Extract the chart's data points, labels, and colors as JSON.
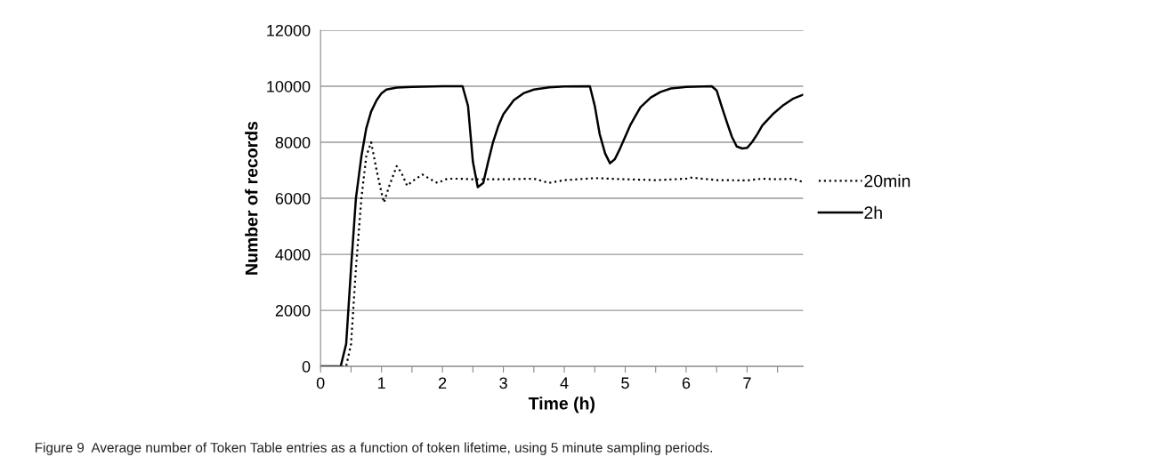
{
  "chart_data": {
    "type": "line",
    "xlabel": "Time (h)",
    "ylabel": "Number of records",
    "xlim": [
      0,
      7.92
    ],
    "ylim": [
      0,
      12000
    ],
    "xticks": [
      0,
      {
        "value": 0.5,
        "label": null
      },
      1,
      {
        "value": 1.5,
        "label": null
      },
      2,
      {
        "value": 2.5,
        "label": null
      },
      3,
      {
        "value": 3.5,
        "label": null
      },
      4,
      {
        "value": 4.5,
        "label": null
      },
      5,
      {
        "value": 5.5,
        "label": null
      },
      6,
      {
        "value": 6.5,
        "label": null
      },
      7,
      {
        "value": 7.5,
        "label": null
      }
    ],
    "yticks": [
      0,
      2000,
      4000,
      6000,
      8000,
      10000,
      12000
    ],
    "grid": "y",
    "legend": "right",
    "marker": "none",
    "series": [
      {
        "name": "20min",
        "color": "#000000",
        "line_style": "dotted",
        "x": [
          0,
          0.42,
          0.5,
          0.58,
          0.67,
          0.75,
          0.83,
          0.92,
          1.0,
          1.04,
          1.12,
          1.25,
          1.33,
          1.42,
          1.5,
          1.67,
          1.83,
          1.92,
          2.08,
          2.25,
          2.5,
          3.0,
          3.5,
          3.75,
          4.0,
          4.5,
          5.0,
          5.5,
          6.0,
          6.08,
          6.5,
          7.0,
          7.25,
          7.5,
          7.75,
          7.92
        ],
        "values": [
          0,
          0,
          800,
          3500,
          6000,
          7500,
          8000,
          7000,
          6200,
          5850,
          6400,
          7150,
          6900,
          6450,
          6600,
          6850,
          6650,
          6550,
          6700,
          6700,
          6680,
          6680,
          6700,
          6550,
          6650,
          6720,
          6680,
          6650,
          6700,
          6740,
          6650,
          6640,
          6700,
          6680,
          6700,
          6580
        ]
      },
      {
        "name": "2h",
        "color": "#000000",
        "line_style": "solid",
        "x": [
          0,
          0.33,
          0.42,
          0.5,
          0.58,
          0.67,
          0.75,
          0.83,
          0.92,
          1.0,
          1.08,
          1.25,
          1.5,
          2.0,
          2.33,
          2.42,
          2.5,
          2.58,
          2.67,
          2.75,
          2.83,
          2.92,
          3.0,
          3.17,
          3.33,
          3.5,
          3.75,
          4.0,
          4.42,
          4.5,
          4.58,
          4.67,
          4.75,
          4.83,
          4.92,
          5.0,
          5.08,
          5.17,
          5.25,
          5.42,
          5.58,
          5.75,
          6.0,
          6.42,
          6.5,
          6.58,
          6.67,
          6.75,
          6.83,
          6.92,
          7.0,
          7.08,
          7.17,
          7.25,
          7.42,
          7.58,
          7.75,
          7.92
        ],
        "values": [
          0,
          0,
          800,
          3500,
          6000,
          7500,
          8500,
          9100,
          9500,
          9750,
          9880,
          9950,
          9980,
          10000,
          10000,
          9300,
          7300,
          6400,
          6550,
          7300,
          8000,
          8600,
          9000,
          9500,
          9750,
          9880,
          9960,
          9990,
          10000,
          9300,
          8300,
          7600,
          7250,
          7400,
          7800,
          8200,
          8600,
          8950,
          9250,
          9600,
          9800,
          9920,
          9980,
          10000,
          9850,
          9300,
          8700,
          8200,
          7850,
          7780,
          7800,
          8000,
          8300,
          8600,
          9000,
          9300,
          9550,
          9700
        ]
      }
    ],
    "annotations": [
      "Figure 9  Average number of Token Table entries as a function of token lifetime, using 5 minute sampling periods."
    ]
  }
}
